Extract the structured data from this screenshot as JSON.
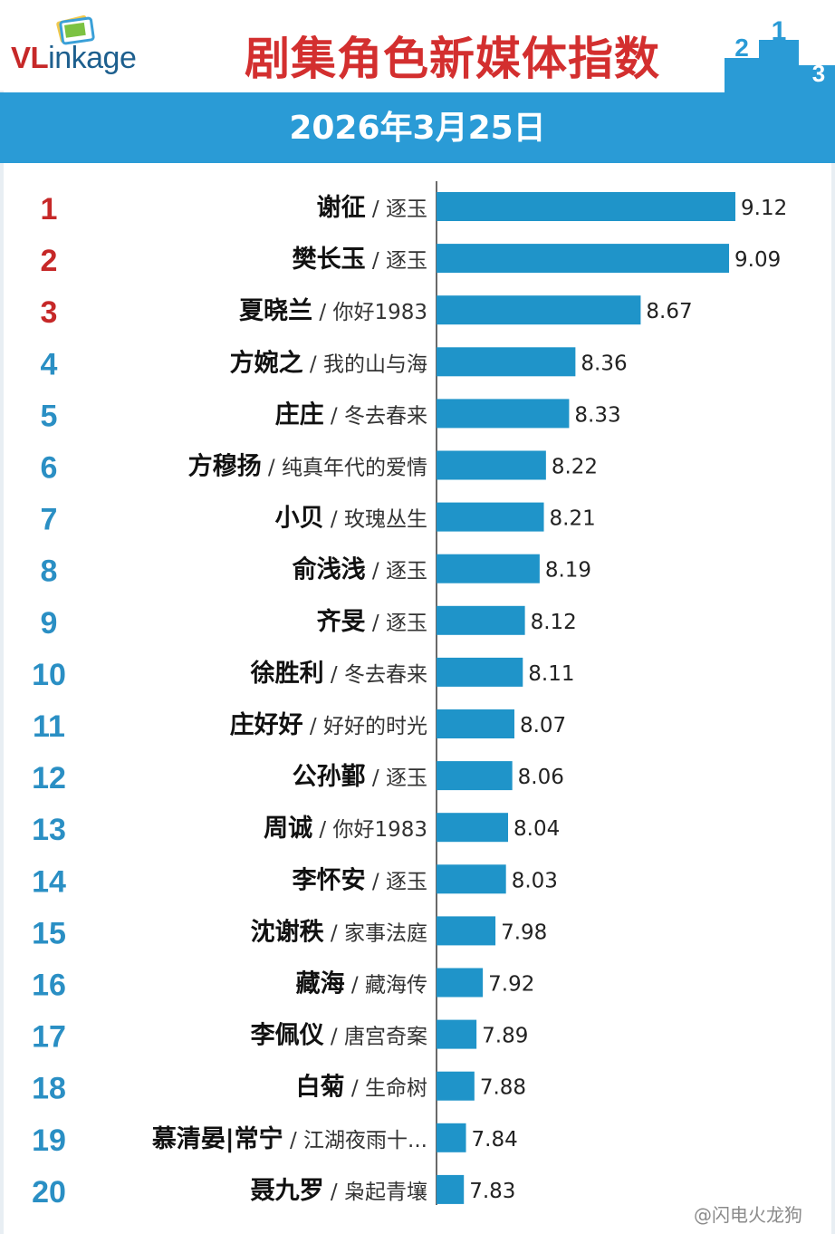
{
  "header": {
    "logo_prefix": "VL",
    "logo_suffix": "inkage",
    "title": "剧集角色新媒体指数",
    "date": "2026年3月25日",
    "podium_labels": [
      "2",
      "1",
      "3"
    ]
  },
  "colors": {
    "bar": "#1f94c9",
    "rank_top": "#c62828",
    "rank_rest": "#2a8fc4",
    "header_band": "#2a9bd6",
    "title": "#d32f2f"
  },
  "chart_data": {
    "type": "bar",
    "orientation": "horizontal",
    "title": "剧集角色新媒体指数",
    "subtitle": "2026年3月25日",
    "xlim": [
      7.7,
      9.12
    ],
    "categories": [
      {
        "rank": "1",
        "character": "谢征",
        "drama": "逐玉"
      },
      {
        "rank": "2",
        "character": "樊长玉",
        "drama": "逐玉"
      },
      {
        "rank": "3",
        "character": "夏晓兰",
        "drama": "你好1983"
      },
      {
        "rank": "4",
        "character": "方婉之",
        "drama": "我的山与海"
      },
      {
        "rank": "5",
        "character": "庄庄",
        "drama": "冬去春来"
      },
      {
        "rank": "6",
        "character": "方穆扬",
        "drama": "纯真年代的爱情"
      },
      {
        "rank": "7",
        "character": "小贝",
        "drama": "玫瑰丛生"
      },
      {
        "rank": "8",
        "character": "俞浅浅",
        "drama": "逐玉"
      },
      {
        "rank": "9",
        "character": "齐旻",
        "drama": "逐玉"
      },
      {
        "rank": "10",
        "character": "徐胜利",
        "drama": "冬去春来"
      },
      {
        "rank": "11",
        "character": "庄好好",
        "drama": "好好的时光"
      },
      {
        "rank": "12",
        "character": "公孙鄞",
        "drama": "逐玉"
      },
      {
        "rank": "13",
        "character": "周诚",
        "drama": "你好1983"
      },
      {
        "rank": "14",
        "character": "李怀安",
        "drama": "逐玉"
      },
      {
        "rank": "15",
        "character": "沈谢秩",
        "drama": "家事法庭"
      },
      {
        "rank": "16",
        "character": "藏海",
        "drama": "藏海传"
      },
      {
        "rank": "17",
        "character": "李佩仪",
        "drama": "唐宫奇案"
      },
      {
        "rank": "18",
        "character": "白菊",
        "drama": "生命树"
      },
      {
        "rank": "19",
        "character": "慕清晏|常宁",
        "drama": "江湖夜雨十..."
      },
      {
        "rank": "20",
        "character": "聂九罗",
        "drama": "枭起青壤"
      }
    ],
    "values": [
      9.12,
      9.09,
      8.67,
      8.36,
      8.33,
      8.22,
      8.21,
      8.19,
      8.12,
      8.11,
      8.07,
      8.06,
      8.04,
      8.03,
      7.98,
      7.92,
      7.89,
      7.88,
      7.84,
      7.83
    ],
    "value_labels": [
      "9.12",
      "9.09",
      "8.67",
      "8.36",
      "8.33",
      "8.22",
      "8.21",
      "8.19",
      "8.12",
      "8.11",
      "8.07",
      "8.06",
      "8.04",
      "8.03",
      "7.98",
      "7.92",
      "7.89",
      "7.88",
      "7.84",
      "7.83"
    ],
    "separator": " / ",
    "grid": false,
    "legend": "none"
  },
  "watermark": "@闪电火龙狗"
}
